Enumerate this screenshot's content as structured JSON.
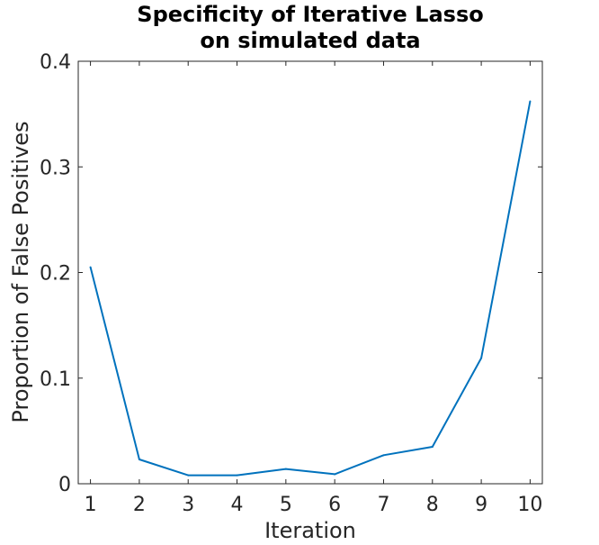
{
  "chart_data": {
    "type": "line",
    "title": [
      "Specificity of Iterative Lasso",
      "on simulated data"
    ],
    "xlabel": "Iteration",
    "ylabel": "Proportion of False Positives",
    "x": [
      1,
      2,
      3,
      4,
      5,
      6,
      7,
      8,
      9,
      10
    ],
    "series": [
      {
        "values": [
          0.205,
          0.023,
          0.008,
          0.008,
          0.014,
          0.009,
          0.027,
          0.035,
          0.119,
          0.362
        ]
      }
    ],
    "xlim": [
      0.75,
      10.25
    ],
    "ylim": [
      0,
      0.4
    ],
    "xticks": [
      1,
      2,
      3,
      4,
      5,
      6,
      7,
      8,
      9,
      10
    ],
    "yticks": [
      0,
      0.1,
      0.2,
      0.3,
      0.4
    ],
    "ytick_labels": [
      "0",
      "0.1",
      "0.2",
      "0.3",
      "0.4"
    ],
    "grid": false,
    "line_color": "#0072BD",
    "axis_color": "#262626"
  }
}
